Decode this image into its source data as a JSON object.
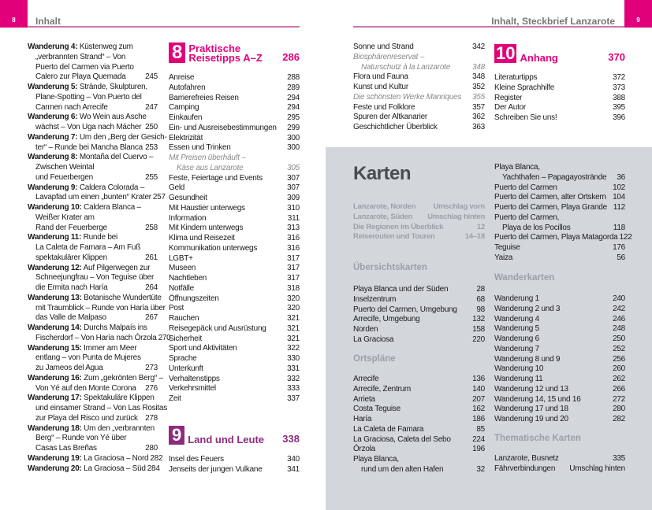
{
  "colors": {
    "accent": "#e2007a",
    "chapter9": "#8e2b7f",
    "panel": "#d3d7db"
  },
  "header": {
    "left_page": "8",
    "left_title": "Inhalt",
    "right_page": "9",
    "right_title": "Inhalt, Steckbrief Lanzarote"
  },
  "left_col1": {
    "items": [
      {
        "bold": "Wanderung 4:",
        "lines": [
          " Küstenweg zum",
          "„verbrannten Strand“ – Von",
          "Puerto del Carmen via Puerto",
          "Calero zur Playa Quemada"
        ],
        "page": "245"
      },
      {
        "bold": "Wanderung 5:",
        "lines": [
          " Strände, Skulpturen,",
          "Plane-Spotting – Von Puerto del",
          "Carmen nach Arrecife"
        ],
        "page": "247"
      },
      {
        "bold": "Wanderung 6:",
        "lines": [
          " Wo Wein aus Asche",
          "wächst – Von Uga nach Mácher"
        ],
        "page": "250"
      },
      {
        "bold": "Wanderung 7:",
        "lines": [
          " Um den „Berg der Gesich-",
          "ter“ – Runde bei Mancha Blanca"
        ],
        "page": "253"
      },
      {
        "bold": "Wanderung 8:",
        "lines": [
          " Montaña del Cuervo –",
          "Zwischen Weintal",
          "und Feuerbergen"
        ],
        "page": "255"
      },
      {
        "bold": "Wanderung 9:",
        "lines": [
          " Caldera Colorada –",
          "Lavapfad um einen „bunten“ Krater"
        ],
        "page": "257"
      },
      {
        "bold": "Wanderung 10:",
        "lines": [
          " Caldera Blanca –",
          "Weißer Krater am",
          "Rand der Feuerberge"
        ],
        "page": "258"
      },
      {
        "bold": "Wanderung 11:",
        "lines": [
          " Runde bei",
          "La Caleta de Famara – Am Fuß",
          "spektakulärer Klippen"
        ],
        "page": "261"
      },
      {
        "bold": "Wanderung 12:",
        "lines": [
          " Auf Pilgerwegen zur",
          "Schneejungfrau – Von Teguise über",
          "die Ermita nach Haría"
        ],
        "page": "264"
      },
      {
        "bold": "Wanderung 13:",
        "lines": [
          " Botanische Wundertüte",
          "mit Traumblick – Runde von Haría über",
          "das Valle de Malpaso"
        ],
        "page": "267"
      },
      {
        "bold": "Wanderung 14:",
        "lines": [
          " Durchs Malpaís ins",
          "Fischerdorf – Von Haría nach Órzola"
        ],
        "page": "270"
      },
      {
        "bold": "Wanderung 15:",
        "lines": [
          " Immer am Meer",
          "entlang – von Punta de Mujeres",
          "zu Jameos del Agua"
        ],
        "page": "273"
      },
      {
        "bold": "Wanderung 16:",
        "lines": [
          " Zum „gekrönten Berg“ –",
          "Von Yé auf den Monte Corona"
        ],
        "page": "276"
      },
      {
        "bold": "Wanderung 17:",
        "lines": [
          " Spektakuläre Klippen",
          "und einsamer Strand – Von Las Rositas",
          "zur Playa del Risco und zurück"
        ],
        "page": "278"
      },
      {
        "bold": "Wanderung 18:",
        "lines": [
          " Um den „verbrannten",
          "Berg“ – Runde von Yé über",
          "Casas Las Breñas"
        ],
        "page": "280"
      },
      {
        "bold": "Wanderung 19:",
        "lines": [
          " La Graciosa – Nord"
        ],
        "page": "282"
      },
      {
        "bold": "Wanderung 20:",
        "lines": [
          " La Graciosa – Süd"
        ],
        "page": "284"
      }
    ]
  },
  "chapter8": {
    "number": "8",
    "title_line1": "Praktische",
    "title_line2": "Reisetipps A–Z",
    "page": "286"
  },
  "left_col2": {
    "items": [
      {
        "lines": [
          "Anreise"
        ],
        "page": "288"
      },
      {
        "lines": [
          "Autofahren"
        ],
        "page": "289"
      },
      {
        "lines": [
          "Barrierefreies Reisen"
        ],
        "page": "294"
      },
      {
        "lines": [
          "Camping"
        ],
        "page": "294"
      },
      {
        "lines": [
          "Einkaufen"
        ],
        "page": "295"
      },
      {
        "lines": [
          "Ein- und Ausreisebestimmungen"
        ],
        "page": "299"
      },
      {
        "lines": [
          "Elektrizität"
        ],
        "page": "300"
      },
      {
        "lines": [
          "Essen und Trinken"
        ],
        "page": "300"
      },
      {
        "lines": [
          "Mit Preisen überhäuft –",
          "Käse aus Lanzarote"
        ],
        "page": "305",
        "italic": true
      },
      {
        "lines": [
          "Feste, Feiertage und Events"
        ],
        "page": "307"
      },
      {
        "lines": [
          "Geld"
        ],
        "page": "307"
      },
      {
        "lines": [
          "Gesundheit"
        ],
        "page": "309"
      },
      {
        "lines": [
          "Mit Haustier unterwegs"
        ],
        "page": "310"
      },
      {
        "lines": [
          "Information"
        ],
        "page": "311"
      },
      {
        "lines": [
          "Mit Kindern unterwegs"
        ],
        "page": "313"
      },
      {
        "lines": [
          "Klima und Reisezeit"
        ],
        "page": "316"
      },
      {
        "lines": [
          "Kommunikation unterwegs"
        ],
        "page": "316"
      },
      {
        "lines": [
          "LGBT+"
        ],
        "page": "317"
      },
      {
        "lines": [
          "Museen"
        ],
        "page": "317"
      },
      {
        "lines": [
          "Nachtleben"
        ],
        "page": "317"
      },
      {
        "lines": [
          "Notfälle"
        ],
        "page": "318"
      },
      {
        "lines": [
          "Öffnungszeiten"
        ],
        "page": "320"
      },
      {
        "lines": [
          "Post"
        ],
        "page": "320"
      },
      {
        "lines": [
          "Rauchen"
        ],
        "page": "321"
      },
      {
        "lines": [
          "Reisegepäck und Ausrüstung"
        ],
        "page": "321"
      },
      {
        "lines": [
          "Sicherheit"
        ],
        "page": "321"
      },
      {
        "lines": [
          "Sport und Aktivitäten"
        ],
        "page": "322"
      },
      {
        "lines": [
          "Sprache"
        ],
        "page": "330"
      },
      {
        "lines": [
          "Unterkunft"
        ],
        "page": "331"
      },
      {
        "lines": [
          "Verhaltenstipps"
        ],
        "page": "332"
      },
      {
        "lines": [
          "Verkehrsmittel"
        ],
        "page": "333"
      },
      {
        "lines": [
          "Zeit"
        ],
        "page": "337"
      }
    ]
  },
  "chapter9": {
    "number": "9",
    "title": "Land und Leute",
    "page": "338"
  },
  "chapter9_list": {
    "items": [
      {
        "lines": [
          "Insel des Feuers"
        ],
        "page": "340"
      },
      {
        "lines": [
          "Jenseits der jungen Vulkane"
        ],
        "page": "341"
      }
    ]
  },
  "right_col1": {
    "items": [
      {
        "lines": [
          "Sonne und Strand"
        ],
        "page": "342"
      },
      {
        "lines": [
          "Biosphärenreservat –",
          "Naturschutz à la Lanzarote"
        ],
        "page": "348",
        "italic": true
      },
      {
        "lines": [
          "Flora und Fauna"
        ],
        "page": "348"
      },
      {
        "lines": [
          "Kunst und Kultur"
        ],
        "page": "352"
      },
      {
        "lines": [
          "Die schönsten Werke Manriques"
        ],
        "page": "355",
        "italic": true
      },
      {
        "lines": [
          "Feste und Folklore"
        ],
        "page": "357"
      },
      {
        "lines": [
          "Spuren der Altkanarier"
        ],
        "page": "362"
      },
      {
        "lines": [
          "Geschichtlicher Überblick"
        ],
        "page": "363"
      }
    ]
  },
  "chapter10": {
    "number": "10",
    "title": "Anhang",
    "page": "370"
  },
  "chapter10_list": {
    "items": [
      {
        "lines": [
          "Literaturtipps"
        ],
        "page": "372"
      },
      {
        "lines": [
          "Kleine Sprachhilfe"
        ],
        "page": "373"
      },
      {
        "lines": [
          "Register"
        ],
        "page": "388"
      },
      {
        "lines": [
          "Der Autor"
        ],
        "page": "395"
      },
      {
        "lines": [
          "Schreiben Sie uns!"
        ],
        "page": "396"
      }
    ]
  },
  "maps": {
    "title": "Karten",
    "overview_links": {
      "items": [
        {
          "lines": [
            "Lanzarote, Norden"
          ],
          "page": "Umschlag vorn",
          "muted": true
        },
        {
          "lines": [
            "Lanzarote, Süden"
          ],
          "page": "Umschlag hinten",
          "muted": true
        },
        {
          "lines": [
            "Die Regionen im Überblick"
          ],
          "page": "12",
          "muted": true
        },
        {
          "lines": [
            "Reiserouten und Touren"
          ],
          "page": "14–18",
          "muted": true
        }
      ]
    },
    "section_overview": "Übersichtskarten",
    "overview": {
      "items": [
        {
          "lines": [
            "Playa Blanca und der Süden"
          ],
          "page": "28"
        },
        {
          "lines": [
            "Inselzentrum"
          ],
          "page": "68"
        },
        {
          "lines": [
            "Puerto del Carmen, Umgebung"
          ],
          "page": "98"
        },
        {
          "lines": [
            "Arrecife, Umgebung"
          ],
          "page": "132"
        },
        {
          "lines": [
            "Norden"
          ],
          "page": "158"
        },
        {
          "lines": [
            "La Graciosa"
          ],
          "page": "220"
        }
      ]
    },
    "section_town": "Ortspläne",
    "town": {
      "items": [
        {
          "lines": [
            "Arrecife"
          ],
          "page": "136"
        },
        {
          "lines": [
            "Arrecife, Zentrum"
          ],
          "page": "140"
        },
        {
          "lines": [
            "Arrieta"
          ],
          "page": "207"
        },
        {
          "lines": [
            "Costa Teguise"
          ],
          "page": "162"
        },
        {
          "lines": [
            "Haría"
          ],
          "page": "186"
        },
        {
          "lines": [
            "La Caleta de Famara"
          ],
          "page": "85"
        },
        {
          "lines": [
            "La Graciosa, Caleta del Sebo"
          ],
          "page": "224"
        },
        {
          "lines": [
            "Órzola"
          ],
          "page": "196"
        },
        {
          "lines": [
            "Playa Blanca,",
            "rund um den alten Hafen"
          ],
          "page": "32"
        }
      ]
    },
    "town2": {
      "items": [
        {
          "lines": [
            "Playa Blanca,",
            "Yachthafen – Papagayostrände"
          ],
          "page": "36"
        },
        {
          "lines": [
            "Puerto del Carmen"
          ],
          "page": "102"
        },
        {
          "lines": [
            "Puerto del Carmen, alter Ortskern"
          ],
          "page": "104"
        },
        {
          "lines": [
            "Puerto del Carmen, Playa Grande"
          ],
          "page": "112"
        },
        {
          "lines": [
            "Puerto del Carmen,",
            "Playa de los Pocillos"
          ],
          "page": "118"
        },
        {
          "lines": [
            "Puerto del Carmen, Playa Matagorda"
          ],
          "page": "122"
        },
        {
          "lines": [
            "Teguise"
          ],
          "page": "176"
        },
        {
          "lines": [
            "Yaiza"
          ],
          "page": "56"
        }
      ]
    },
    "section_hiking": "Wanderkarten",
    "hiking": {
      "items": [
        {
          "lines": [
            "Wanderung 1"
          ],
          "page": "240"
        },
        {
          "lines": [
            "Wanderung 2 und 3"
          ],
          "page": "242"
        },
        {
          "lines": [
            "Wanderung 4"
          ],
          "page": "246"
        },
        {
          "lines": [
            "Wanderung 5"
          ],
          "page": "248"
        },
        {
          "lines": [
            "Wanderung 6"
          ],
          "page": "250"
        },
        {
          "lines": [
            "Wanderung 7"
          ],
          "page": "252"
        },
        {
          "lines": [
            "Wanderung 8 und 9"
          ],
          "page": "256"
        },
        {
          "lines": [
            "Wanderung 10"
          ],
          "page": "260"
        },
        {
          "lines": [
            "Wanderung 11"
          ],
          "page": "262"
        },
        {
          "lines": [
            "Wanderung 12 und 13"
          ],
          "page": "266"
        },
        {
          "lines": [
            "Wanderung 14, 15 und 16"
          ],
          "page": "272"
        },
        {
          "lines": [
            "Wanderung 17 und 18"
          ],
          "page": "280"
        },
        {
          "lines": [
            "Wanderung 19 und 20"
          ],
          "page": "282"
        }
      ]
    },
    "section_thematic": "Thematische Karten",
    "thematic": {
      "items": [
        {
          "lines": [
            "Lanzarote, Busnetz"
          ],
          "page": "335"
        },
        {
          "lines": [
            "Fährverbindungen"
          ],
          "page": "Umschlag hinten"
        }
      ]
    }
  }
}
